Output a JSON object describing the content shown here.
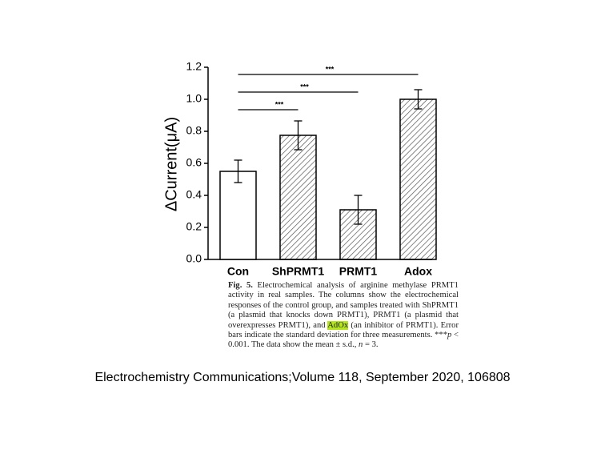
{
  "chart_data": {
    "type": "bar",
    "y_label": "ΔCurrent(μA)",
    "categories": [
      "Con",
      "ShPRMT1",
      "PRMT1",
      "Adox"
    ],
    "values": [
      0.55,
      0.775,
      0.31,
      1.0
    ],
    "errors": [
      0.07,
      0.09,
      0.09,
      0.06
    ],
    "hatched": [
      false,
      true,
      true,
      true
    ],
    "color": "#000000",
    "ylim": [
      0,
      1.2
    ],
    "yticks": [
      {
        "value": 0,
        "label": "0.0"
      },
      {
        "value": 0.2,
        "label": "0.2"
      },
      {
        "value": 0.4,
        "label": "0.4"
      },
      {
        "value": 0.6,
        "label": "0.6"
      },
      {
        "value": 0.8,
        "label": "0.8"
      },
      {
        "value": 1,
        "label": "1.0"
      },
      {
        "value": 1.2,
        "label": "1.2"
      }
    ],
    "comparisons": [
      {
        "groups": [
          "Con",
          "ShPRMT1"
        ],
        "label": "***"
      },
      {
        "groups": [
          "Con",
          "PRMT1"
        ],
        "label": "***"
      },
      {
        "groups": [
          "Con",
          "Adox"
        ],
        "label": "***"
      }
    ]
  },
  "caption": {
    "label": "Fig. 5.",
    "parts": [
      "Electrochemical analysis of arginine methylase PRMT1 activity in real samples. The columns show the electrochemical responses of the control group, and samples treated with ShPRMT1 (a plasmid that knocks down PRMT1), PRMT1 (a plasmid that overexpresses PRMT1), and ",
      "AdOx",
      " (an inhibitor of PRMT1). Error bars indicate the standard deviation for three measurements. ***",
      "p",
      " < 0.001. The data show the mean ± s.d., ",
      "n",
      " = 3."
    ]
  },
  "citation": "Electrochemistry Communications;Volume 118, September 2020, 106808"
}
